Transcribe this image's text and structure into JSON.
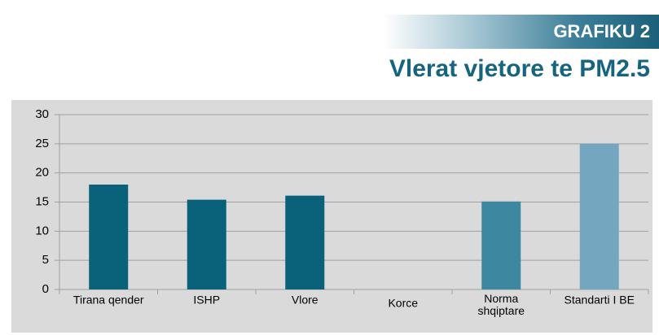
{
  "header": {
    "label": "GRAFIKU 2"
  },
  "chart_data": {
    "type": "bar",
    "title": "Vlerat vjetore te PM2.5",
    "categories": [
      "Tirana qender",
      "ISHP",
      "Vlore",
      "Korce",
      "Norma\nshqiptare",
      "Standarti I BE"
    ],
    "values": [
      18,
      15.4,
      16.1,
      null,
      15.1,
      25
    ],
    "colors": [
      "#09617a",
      "#09617a",
      "#09617a",
      "#09617a",
      "#3d88a0",
      "#74a7bf"
    ],
    "ylim": [
      0,
      30
    ],
    "yticks": [
      0,
      5,
      10,
      15,
      20,
      25,
      30
    ],
    "grid": true
  }
}
